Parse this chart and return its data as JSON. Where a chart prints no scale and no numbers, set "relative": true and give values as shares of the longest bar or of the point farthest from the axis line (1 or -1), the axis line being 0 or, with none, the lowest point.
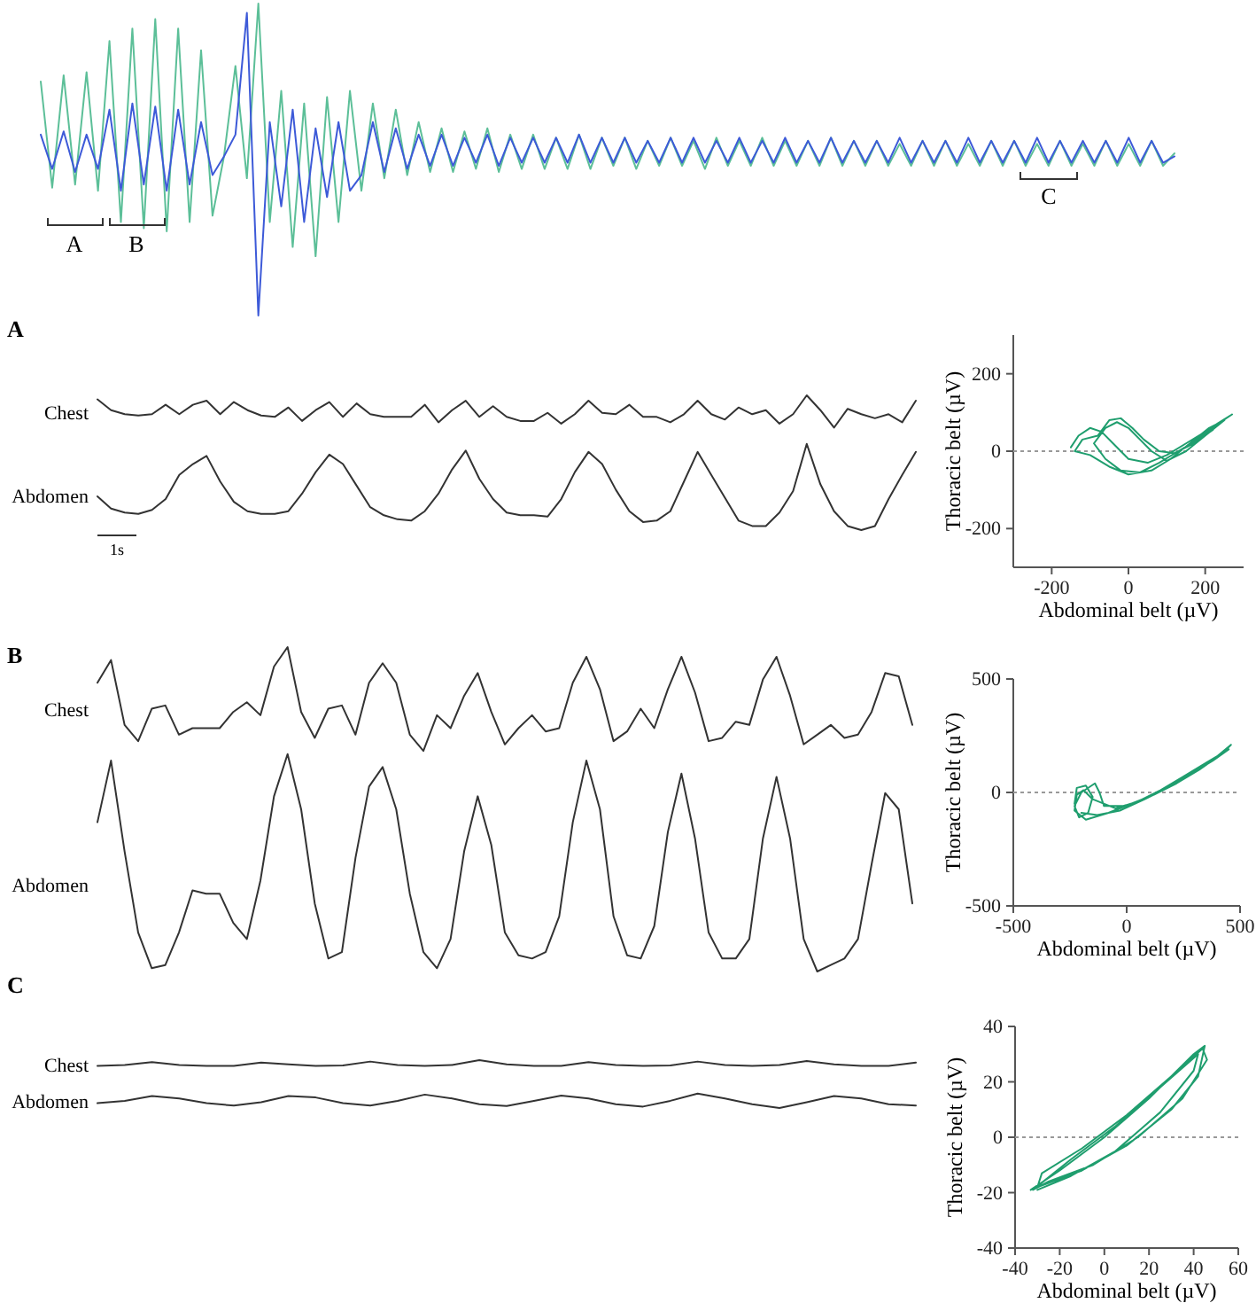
{
  "chart_data": [
    {
      "type": "line",
      "relative": true,
      "categories": [
        null,
        null,
        null,
        null,
        null,
        null,
        null,
        null,
        null,
        null,
        null,
        null,
        null,
        null,
        null,
        null,
        null,
        null,
        null,
        null,
        null,
        null,
        null,
        null,
        null,
        null,
        null,
        null,
        null,
        null,
        null,
        null,
        null,
        null,
        null,
        null,
        null,
        null,
        null,
        null,
        null,
        null,
        null,
        null,
        null,
        null,
        null,
        null,
        null,
        null,
        null,
        null,
        null,
        null,
        null,
        null,
        null,
        null,
        null,
        null,
        null,
        null,
        null,
        null,
        null,
        null,
        null,
        null,
        null,
        null,
        null,
        null,
        null,
        null,
        null,
        null,
        null,
        null,
        null,
        null,
        null,
        null,
        null,
        null,
        null,
        null,
        null,
        null,
        null,
        null,
        null,
        null,
        null,
        null,
        null,
        null,
        null,
        null,
        null,
        null
      ],
      "series": [
        {
          "color": "#5cbf98",
          "values": [
            0.75,
            0.41,
            0.77,
            0.42,
            0.78,
            0.4,
            0.88,
            0.3,
            0.92,
            0.28,
            0.95,
            0.27,
            0.92,
            0.3,
            0.85,
            0.32,
            0.51,
            0.8,
            0.44,
            1.0,
            0.3,
            0.72,
            0.22,
            0.68,
            0.19,
            0.7,
            0.3,
            0.72,
            0.4,
            0.68,
            0.44,
            0.66,
            0.45,
            0.62,
            0.46,
            0.6,
            0.46,
            0.59,
            0.47,
            0.6,
            0.46,
            0.58,
            0.47,
            0.58,
            0.47,
            0.57,
            0.47,
            0.58,
            0.47,
            0.57,
            0.48,
            0.57,
            0.47,
            0.56,
            0.48,
            0.57,
            0.48,
            0.56,
            0.47,
            0.57,
            0.48,
            0.56,
            0.48,
            0.57,
            0.48,
            0.56,
            0.48,
            0.56,
            0.48,
            0.57,
            0.48,
            0.56,
            0.48,
            0.56,
            0.48,
            0.55,
            0.48,
            0.56,
            0.48,
            0.56,
            0.48,
            0.55,
            0.48,
            0.56,
            0.48,
            0.56,
            0.48,
            0.55,
            0.48,
            0.56,
            0.48,
            0.55,
            0.48,
            0.56,
            0.48,
            0.55,
            0.48,
            0.56,
            0.48,
            0.52
          ]
        },
        {
          "color": "#3d5ad8",
          "values": [
            0.58,
            0.47,
            0.59,
            0.46,
            0.58,
            0.47,
            0.66,
            0.4,
            0.68,
            0.42,
            0.67,
            0.4,
            0.66,
            0.42,
            0.62,
            0.45,
            0.51,
            0.58,
            0.97,
            0.0,
            0.62,
            0.35,
            0.66,
            0.3,
            0.6,
            0.38,
            0.62,
            0.4,
            0.45,
            0.62,
            0.46,
            0.6,
            0.47,
            0.58,
            0.48,
            0.58,
            0.48,
            0.57,
            0.49,
            0.58,
            0.48,
            0.57,
            0.49,
            0.57,
            0.49,
            0.57,
            0.49,
            0.58,
            0.49,
            0.57,
            0.49,
            0.57,
            0.49,
            0.56,
            0.49,
            0.57,
            0.49,
            0.57,
            0.49,
            0.56,
            0.49,
            0.57,
            0.49,
            0.56,
            0.49,
            0.57,
            0.49,
            0.56,
            0.49,
            0.57,
            0.49,
            0.56,
            0.49,
            0.56,
            0.49,
            0.57,
            0.49,
            0.56,
            0.49,
            0.56,
            0.49,
            0.57,
            0.49,
            0.56,
            0.49,
            0.56,
            0.49,
            0.57,
            0.49,
            0.56,
            0.49,
            0.56,
            0.49,
            0.56,
            0.49,
            0.57,
            0.49,
            0.56,
            0.49,
            0.51
          ]
        }
      ],
      "annotations": [
        "A",
        "B",
        "C"
      ]
    },
    {
      "type": "line",
      "relative": true,
      "title": "A",
      "categories": [
        null,
        null,
        null,
        null,
        null,
        null,
        null,
        null,
        null,
        null,
        null,
        null,
        null,
        null,
        null,
        null,
        null,
        null,
        null,
        null,
        null,
        null,
        null,
        null,
        null,
        null,
        null,
        null,
        null,
        null,
        null,
        null,
        null,
        null,
        null,
        null,
        null,
        null,
        null,
        null,
        null,
        null,
        null,
        null,
        null,
        null,
        null,
        null,
        null,
        null,
        null,
        null,
        null,
        null,
        null,
        null,
        null,
        null,
        null,
        null,
        null
      ],
      "series": [
        {
          "name": "Chest",
          "color": "#333333",
          "values": [
            0.97,
            0.89,
            0.86,
            0.85,
            0.86,
            0.93,
            0.86,
            0.93,
            0.96,
            0.86,
            0.95,
            0.89,
            0.85,
            0.84,
            0.91,
            0.81,
            0.89,
            0.95,
            0.84,
            0.94,
            0.86,
            0.84,
            0.84,
            0.84,
            0.93,
            0.8,
            0.89,
            0.96,
            0.84,
            0.92,
            0.84,
            0.81,
            0.81,
            0.87,
            0.79,
            0.86,
            0.96,
            0.87,
            0.86,
            0.93,
            0.84,
            0.84,
            0.8,
            0.86,
            0.96,
            0.86,
            0.82,
            0.91,
            0.86,
            0.89,
            0.79,
            0.86,
            1.0,
            0.89,
            0.76,
            0.9,
            0.86,
            0.83,
            0.86,
            0.8,
            0.96
          ]
        },
        {
          "name": "Abdomen",
          "color": "#333333",
          "values": [
            0.25,
            0.16,
            0.13,
            0.12,
            0.15,
            0.23,
            0.41,
            0.49,
            0.55,
            0.36,
            0.21,
            0.14,
            0.12,
            0.12,
            0.14,
            0.27,
            0.43,
            0.56,
            0.49,
            0.33,
            0.17,
            0.11,
            0.08,
            0.07,
            0.14,
            0.27,
            0.45,
            0.59,
            0.38,
            0.23,
            0.13,
            0.11,
            0.11,
            0.1,
            0.23,
            0.43,
            0.58,
            0.49,
            0.3,
            0.14,
            0.06,
            0.07,
            0.14,
            0.36,
            0.58,
            0.41,
            0.24,
            0.07,
            0.03,
            0.03,
            0.13,
            0.29,
            0.64,
            0.34,
            0.14,
            0.03,
            0.0,
            0.03,
            0.23,
            0.41,
            0.58
          ]
        }
      ],
      "annotations": [
        "1s"
      ]
    },
    {
      "type": "line",
      "xlabel": "Abdominal belt (µV)",
      "ylabel": "Thoracic belt (µV)",
      "xlim": [
        -300,
        300
      ],
      "ylim": [
        -300,
        300
      ],
      "xticks": [
        -200,
        0,
        200
      ],
      "yticks": [
        -200,
        0,
        200
      ],
      "ref_lines": [
        {
          "axis": "y",
          "value": 0,
          "line_style": "dotted"
        }
      ],
      "series": [
        {
          "color": "#1f9e6e",
          "x": [
            -150,
            -130,
            -100,
            -70,
            -40,
            0,
            50,
            100,
            150,
            200,
            240,
            270,
            230,
            180,
            130,
            80,
            30,
            -20,
            -60,
            -90,
            -60,
            -30,
            0,
            30,
            60,
            100,
            150,
            200,
            250,
            210,
            160,
            110,
            60,
            0,
            -50,
            -100,
            -140,
            -120,
            -80,
            -50,
            -20,
            10,
            40,
            80,
            120,
            170,
            220
          ],
          "values": [
            10,
            40,
            60,
            50,
            20,
            -20,
            -30,
            -10,
            20,
            50,
            75,
            95,
            70,
            30,
            0,
            -30,
            -55,
            -50,
            -20,
            20,
            60,
            75,
            60,
            30,
            0,
            -25,
            0,
            40,
            80,
            60,
            20,
            -20,
            -50,
            -60,
            -40,
            -10,
            0,
            30,
            40,
            80,
            85,
            60,
            30,
            0,
            -5,
            20,
            55
          ]
        }
      ]
    },
    {
      "type": "line",
      "relative": true,
      "title": "B",
      "categories": [
        null,
        null,
        null,
        null,
        null,
        null,
        null,
        null,
        null,
        null,
        null,
        null,
        null,
        null,
        null,
        null,
        null,
        null,
        null,
        null,
        null,
        null,
        null,
        null,
        null,
        null,
        null,
        null,
        null,
        null,
        null,
        null,
        null,
        null,
        null,
        null,
        null,
        null,
        null,
        null,
        null,
        null,
        null,
        null,
        null,
        null,
        null,
        null,
        null,
        null,
        null,
        null,
        null,
        null,
        null,
        null,
        null,
        null,
        null,
        null,
        null
      ],
      "series": [
        {
          "name": "Chest",
          "color": "#333333",
          "values": [
            0.89,
            0.96,
            0.76,
            0.71,
            0.81,
            0.82,
            0.73,
            0.75,
            0.75,
            0.75,
            0.8,
            0.83,
            0.79,
            0.94,
            1.0,
            0.8,
            0.72,
            0.81,
            0.82,
            0.73,
            0.89,
            0.95,
            0.89,
            0.73,
            0.68,
            0.79,
            0.75,
            0.85,
            0.92,
            0.8,
            0.7,
            0.75,
            0.79,
            0.74,
            0.75,
            0.89,
            0.97,
            0.87,
            0.71,
            0.74,
            0.81,
            0.75,
            0.87,
            0.97,
            0.86,
            0.71,
            0.72,
            0.77,
            0.76,
            0.9,
            0.97,
            0.85,
            0.7,
            0.73,
            0.76,
            0.72,
            0.73,
            0.8,
            0.92,
            0.91,
            0.76
          ]
        },
        {
          "name": "Abdomen",
          "color": "#333333",
          "values": [
            0.46,
            0.65,
            0.37,
            0.12,
            0.01,
            0.02,
            0.12,
            0.25,
            0.24,
            0.24,
            0.15,
            0.1,
            0.28,
            0.54,
            0.67,
            0.5,
            0.21,
            0.04,
            0.06,
            0.35,
            0.57,
            0.63,
            0.5,
            0.24,
            0.06,
            0.01,
            0.1,
            0.37,
            0.54,
            0.39,
            0.12,
            0.05,
            0.04,
            0.06,
            0.17,
            0.46,
            0.65,
            0.5,
            0.17,
            0.05,
            0.04,
            0.14,
            0.43,
            0.61,
            0.41,
            0.12,
            0.04,
            0.04,
            0.1,
            0.41,
            0.6,
            0.41,
            0.1,
            0.0,
            0.02,
            0.04,
            0.1,
            0.33,
            0.55,
            0.5,
            0.21
          ]
        }
      ]
    },
    {
      "type": "line",
      "xlabel": "Abdominal belt (µV)",
      "ylabel": "Thoracic belt (µV)",
      "xlim": [
        -500,
        500
      ],
      "ylim": [
        -500,
        500
      ],
      "xticks": [
        -500,
        0,
        500
      ],
      "yticks": [
        -500,
        0,
        500
      ],
      "ref_lines": [
        {
          "axis": "y",
          "value": 0,
          "line_style": "dotted"
        }
      ],
      "series": [
        {
          "color": "#1f9e6e",
          "x": [
            -230,
            -220,
            -180,
            -150,
            -170,
            -210,
            -230,
            -200,
            -140,
            -120,
            -100,
            0,
            100,
            200,
            300,
            400,
            460,
            420,
            320,
            220,
            120,
            20,
            -80,
            -180,
            -230,
            -220,
            -190,
            -150,
            -50,
            50,
            150,
            250,
            350,
            450,
            380,
            280,
            180,
            80,
            -30,
            -130,
            -200
          ],
          "values": [
            -50,
            20,
            30,
            -20,
            -90,
            -110,
            -60,
            0,
            40,
            0,
            -60,
            -60,
            -20,
            40,
            100,
            160,
            210,
            170,
            100,
            40,
            -10,
            -50,
            -90,
            -120,
            -80,
            -10,
            10,
            -30,
            -70,
            -40,
            10,
            70,
            130,
            190,
            140,
            80,
            20,
            -30,
            -80,
            -100,
            -90
          ]
        }
      ]
    },
    {
      "type": "line",
      "relative": true,
      "title": "C",
      "categories": [
        null,
        null,
        null,
        null,
        null,
        null,
        null,
        null,
        null,
        null,
        null,
        null,
        null,
        null,
        null,
        null,
        null,
        null,
        null,
        null,
        null,
        null,
        null,
        null,
        null,
        null,
        null,
        null,
        null,
        null,
        null
      ],
      "series": [
        {
          "name": "Chest",
          "color": "#333333",
          "values": [
            0.88,
            0.9,
            0.96,
            0.9,
            0.88,
            0.88,
            0.95,
            0.91,
            0.88,
            0.89,
            0.97,
            0.9,
            0.88,
            0.9,
            1.0,
            0.91,
            0.88,
            0.88,
            0.96,
            0.9,
            0.88,
            0.89,
            0.97,
            0.9,
            0.88,
            0.9,
            0.98,
            0.91,
            0.88,
            0.88,
            0.95
          ]
        },
        {
          "name": "Abdomen",
          "color": "#333333",
          "values": [
            0.1,
            0.15,
            0.25,
            0.2,
            0.1,
            0.05,
            0.12,
            0.25,
            0.22,
            0.1,
            0.05,
            0.15,
            0.28,
            0.2,
            0.08,
            0.04,
            0.15,
            0.26,
            0.2,
            0.08,
            0.03,
            0.15,
            0.3,
            0.2,
            0.08,
            0.0,
            0.12,
            0.25,
            0.2,
            0.08,
            0.05
          ]
        }
      ]
    },
    {
      "type": "line",
      "xlabel": "Abdominal belt (µV)",
      "ylabel": "Thoracic belt (µV)",
      "xlim": [
        -40,
        60
      ],
      "ylim": [
        -40,
        40
      ],
      "xticks": [
        -40,
        -20,
        0,
        20,
        40,
        60
      ],
      "yticks": [
        -40,
        -20,
        0,
        20,
        40
      ],
      "ref_lines": [
        {
          "axis": "y",
          "value": 0,
          "line_style": "dotted"
        }
      ],
      "series": [
        {
          "color": "#1f9e6e",
          "x": [
            -33,
            -20,
            0,
            20,
            40,
            45,
            42,
            30,
            10,
            -10,
            -30,
            -28,
            -10,
            10,
            30,
            44,
            46,
            35,
            15,
            -5,
            -25,
            -32,
            -15,
            5,
            25,
            42,
            40,
            25,
            5,
            -15,
            -30
          ],
          "values": [
            -19,
            -12,
            0,
            14,
            30,
            33,
            22,
            10,
            -3,
            -12,
            -18,
            -13,
            -4,
            8,
            22,
            32,
            28,
            14,
            0,
            -10,
            -16,
            -19,
            -8,
            4,
            18,
            30,
            24,
            9,
            -5,
            -14,
            -19
          ]
        }
      ]
    }
  ]
}
